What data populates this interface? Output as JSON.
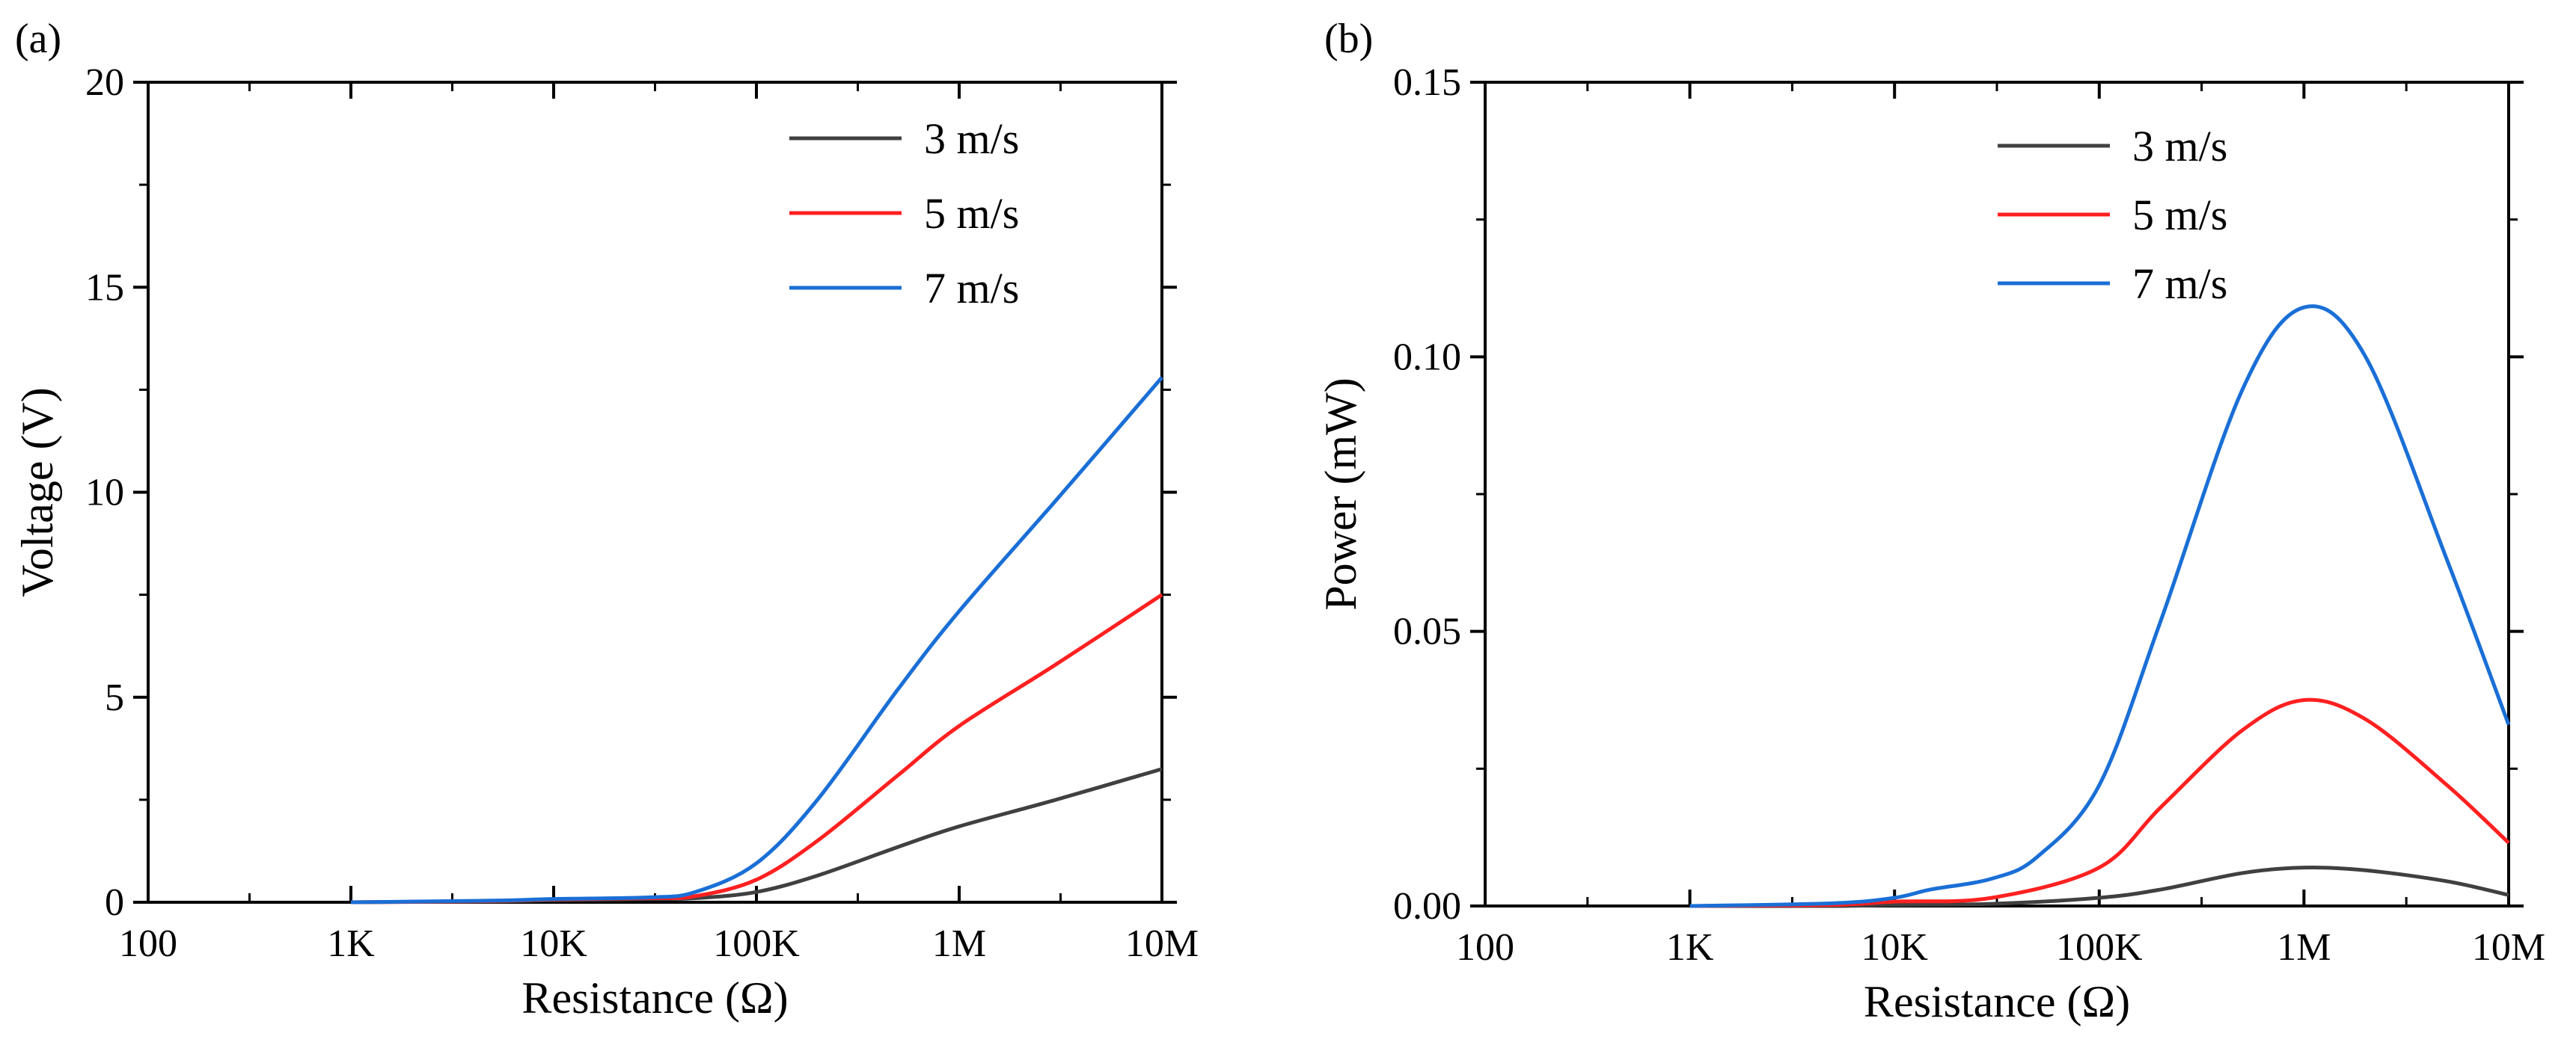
{
  "chart_data": [
    {
      "panel": "(a)",
      "type": "line",
      "xlabel": "Resistance (Ω)",
      "ylabel": "Voltage (V)",
      "x_scale": "log",
      "xlim": [
        100,
        10000000
      ],
      "ylim": [
        0,
        20
      ],
      "x_ticks": [
        100,
        1000,
        10000,
        100000,
        1000000,
        10000000
      ],
      "x_tick_labels": [
        "100",
        "1K",
        "10K",
        "100K",
        "1M",
        "10M"
      ],
      "y_ticks": [
        0,
        5,
        10,
        15,
        20
      ],
      "y_tick_labels": [
        "0",
        "5",
        "10",
        "15",
        "20"
      ],
      "legend_position": "top-right",
      "grid": false,
      "series": [
        {
          "name": "3 m/s",
          "color": "#404040",
          "x": [
            1000,
            5000,
            10000,
            30000,
            50000,
            100000,
            200000,
            500000,
            1000000,
            3000000,
            10000000
          ],
          "y": [
            0,
            0.02,
            0.05,
            0.08,
            0.1,
            0.25,
            0.65,
            1.35,
            1.85,
            2.5,
            3.25
          ]
        },
        {
          "name": "5 m/s",
          "color": "#ff2020",
          "x": [
            1000,
            5000,
            10000,
            30000,
            50000,
            100000,
            200000,
            500000,
            1000000,
            3000000,
            10000000
          ],
          "y": [
            0,
            0.03,
            0.07,
            0.1,
            0.15,
            0.55,
            1.5,
            3.1,
            4.3,
            5.8,
            7.5
          ]
        },
        {
          "name": "7 m/s",
          "color": "#1a6fd6",
          "x": [
            1000,
            5000,
            10000,
            30000,
            50000,
            100000,
            200000,
            500000,
            1000000,
            3000000,
            10000000
          ],
          "y": [
            0,
            0.04,
            0.08,
            0.12,
            0.25,
            0.95,
            2.5,
            5.2,
            7.1,
            9.8,
            12.8
          ]
        }
      ]
    },
    {
      "panel": "(b)",
      "type": "line",
      "xlabel": "Resistance (Ω)",
      "ylabel": "Power (mW)",
      "x_scale": "log",
      "xlim": [
        100,
        10000000
      ],
      "ylim": [
        0,
        0.15
      ],
      "x_ticks": [
        100,
        1000,
        10000,
        100000,
        1000000,
        10000000
      ],
      "x_tick_labels": [
        "100",
        "1K",
        "10K",
        "100K",
        "1M",
        "10M"
      ],
      "y_ticks": [
        0,
        0.05,
        0.1,
        0.15
      ],
      "y_tick_labels": [
        "0.00",
        "0.05",
        "0.10",
        "0.15"
      ],
      "legend_position": "top-center",
      "grid": false,
      "series": [
        {
          "name": "3 m/s",
          "color": "#404040",
          "x": [
            1000,
            5000,
            10000,
            30000,
            100000,
            200000,
            500000,
            1000000,
            2000000,
            5000000,
            10000000
          ],
          "y": [
            0,
            0,
            0.0002,
            0.0004,
            0.0015,
            0.003,
            0.006,
            0.007,
            0.0065,
            0.0045,
            0.002
          ]
        },
        {
          "name": "5 m/s",
          "color": "#ff2020",
          "x": [
            1000,
            5000,
            10000,
            30000,
            100000,
            200000,
            500000,
            1000000,
            2000000,
            5000000,
            10000000
          ],
          "y": [
            0,
            0.0002,
            0.0008,
            0.0015,
            0.007,
            0.018,
            0.032,
            0.0375,
            0.034,
            0.022,
            0.0115
          ]
        },
        {
          "name": "7 m/s",
          "color": "#1a6fd6",
          "x": [
            1000,
            5000,
            10000,
            15000,
            30000,
            50000,
            100000,
            200000,
            500000,
            1000000,
            2000000,
            5000000,
            10000000
          ],
          "y": [
            0,
            0.0005,
            0.0015,
            0.003,
            0.005,
            0.009,
            0.022,
            0.052,
            0.094,
            0.109,
            0.1,
            0.063,
            0.033
          ]
        }
      ]
    }
  ]
}
